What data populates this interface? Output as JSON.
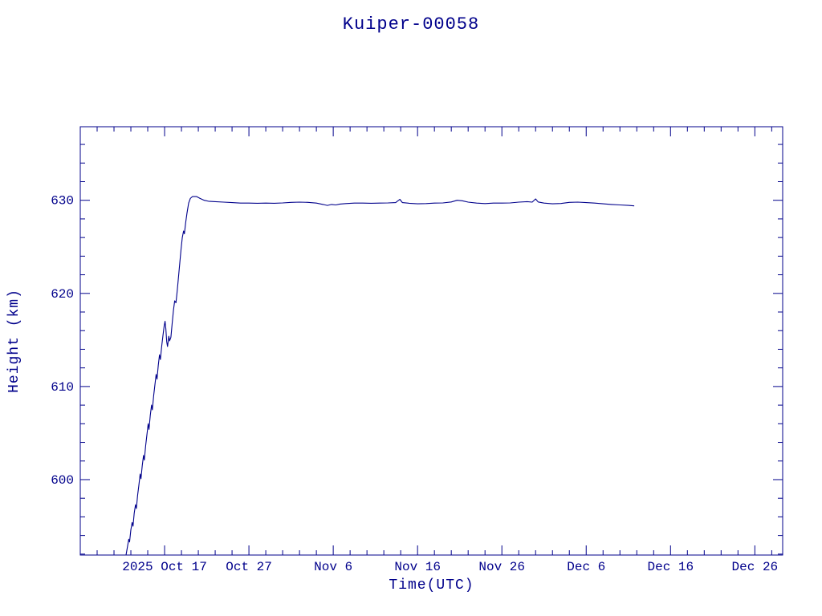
{
  "colors": {
    "ink": "#00008b",
    "background": "#ffffff"
  },
  "chart_data": {
    "type": "line",
    "title": "Kuiper-00058",
    "xlabel": "Time(UTC)",
    "ylabel": "Height (km)",
    "grid": false,
    "legend": false,
    "x_axis": {
      "unit": "days since 2025 Oct 7 (UTC)",
      "range": [
        0,
        83.3
      ],
      "minor_step": 2,
      "major_ticks": [
        {
          "pos": 10,
          "label": "2025 Oct 17"
        },
        {
          "pos": 20,
          "label": "Oct 27"
        },
        {
          "pos": 30,
          "label": "Nov 6"
        },
        {
          "pos": 40,
          "label": "Nov 16"
        },
        {
          "pos": 50,
          "label": "Nov 26"
        },
        {
          "pos": 60,
          "label": "Dec 6"
        },
        {
          "pos": 70,
          "label": "Dec 16"
        },
        {
          "pos": 80,
          "label": "Dec 26"
        }
      ]
    },
    "y_axis": {
      "unit": "km",
      "range": [
        591.9,
        637.9
      ],
      "minor_step": 2,
      "major_ticks": [
        {
          "pos": 600,
          "label": "600"
        },
        {
          "pos": 610,
          "label": "610"
        },
        {
          "pos": 620,
          "label": "620"
        },
        {
          "pos": 630,
          "label": "630"
        }
      ]
    },
    "series": [
      {
        "name": "Kuiper-00058 orbit height",
        "points": [
          [
            5.43,
            591.9
          ],
          [
            5.6,
            592.8
          ],
          [
            5.75,
            593.6
          ],
          [
            5.85,
            593.3
          ],
          [
            6.0,
            594.6
          ],
          [
            6.15,
            595.4
          ],
          [
            6.25,
            595.0
          ],
          [
            6.4,
            596.4
          ],
          [
            6.55,
            597.3
          ],
          [
            6.65,
            596.9
          ],
          [
            6.8,
            598.3
          ],
          [
            6.95,
            599.4
          ],
          [
            7.1,
            600.6
          ],
          [
            7.2,
            600.1
          ],
          [
            7.35,
            601.5
          ],
          [
            7.5,
            602.6
          ],
          [
            7.6,
            602.1
          ],
          [
            7.75,
            603.6
          ],
          [
            7.9,
            604.8
          ],
          [
            8.05,
            606.0
          ],
          [
            8.15,
            605.4
          ],
          [
            8.3,
            606.9
          ],
          [
            8.45,
            608.0
          ],
          [
            8.55,
            607.5
          ],
          [
            8.7,
            609.0
          ],
          [
            8.85,
            610.2
          ],
          [
            9.0,
            611.3
          ],
          [
            9.1,
            610.8
          ],
          [
            9.25,
            612.3
          ],
          [
            9.4,
            613.4
          ],
          [
            9.5,
            612.9
          ],
          [
            9.65,
            614.3
          ],
          [
            9.8,
            615.4
          ],
          [
            9.95,
            616.5
          ],
          [
            10.05,
            617.0
          ],
          [
            10.15,
            616.2
          ],
          [
            10.25,
            614.8
          ],
          [
            10.35,
            614.3
          ],
          [
            10.5,
            615.4
          ],
          [
            10.6,
            614.9
          ],
          [
            10.75,
            615.3
          ],
          [
            10.9,
            616.8
          ],
          [
            11.05,
            618.2
          ],
          [
            11.2,
            619.2
          ],
          [
            11.35,
            619.0
          ],
          [
            11.5,
            620.3
          ],
          [
            11.65,
            621.8
          ],
          [
            11.8,
            623.2
          ],
          [
            11.95,
            624.7
          ],
          [
            12.1,
            626.0
          ],
          [
            12.25,
            626.7
          ],
          [
            12.35,
            626.4
          ],
          [
            12.5,
            627.6
          ],
          [
            12.65,
            628.6
          ],
          [
            12.85,
            629.7
          ],
          [
            13.05,
            630.2
          ],
          [
            13.3,
            630.4
          ],
          [
            13.8,
            630.4
          ],
          [
            14.2,
            630.2
          ],
          [
            14.7,
            630.0
          ],
          [
            15.2,
            629.9
          ],
          [
            16,
            629.85
          ],
          [
            17,
            629.8
          ],
          [
            18,
            629.75
          ],
          [
            19,
            629.7
          ],
          [
            20,
            629.7
          ],
          [
            21,
            629.68
          ],
          [
            22,
            629.7
          ],
          [
            23,
            629.68
          ],
          [
            24,
            629.72
          ],
          [
            25,
            629.78
          ],
          [
            26,
            629.8
          ],
          [
            27,
            629.78
          ],
          [
            28,
            629.7
          ],
          [
            28.8,
            629.55
          ],
          [
            29.3,
            629.45
          ],
          [
            29.8,
            629.55
          ],
          [
            30.3,
            629.5
          ],
          [
            30.8,
            629.6
          ],
          [
            31.5,
            629.65
          ],
          [
            32.5,
            629.7
          ],
          [
            33.5,
            629.7
          ],
          [
            34.5,
            629.68
          ],
          [
            35.5,
            629.7
          ],
          [
            36.5,
            629.72
          ],
          [
            37.4,
            629.75
          ],
          [
            37.9,
            630.1
          ],
          [
            38.2,
            629.75
          ],
          [
            39,
            629.68
          ],
          [
            40,
            629.62
          ],
          [
            41,
            629.65
          ],
          [
            42,
            629.7
          ],
          [
            43,
            629.72
          ],
          [
            44,
            629.82
          ],
          [
            44.7,
            630.0
          ],
          [
            45.3,
            629.95
          ],
          [
            46,
            629.8
          ],
          [
            47,
            629.7
          ],
          [
            48,
            629.65
          ],
          [
            49,
            629.7
          ],
          [
            50,
            629.7
          ],
          [
            51,
            629.72
          ],
          [
            52,
            629.8
          ],
          [
            53,
            629.85
          ],
          [
            53.6,
            629.8
          ],
          [
            54.0,
            630.15
          ],
          [
            54.3,
            629.82
          ],
          [
            55,
            629.7
          ],
          [
            56,
            629.62
          ],
          [
            57,
            629.66
          ],
          [
            58,
            629.78
          ],
          [
            59,
            629.8
          ],
          [
            60,
            629.75
          ],
          [
            61,
            629.7
          ],
          [
            62,
            629.62
          ],
          [
            63,
            629.55
          ],
          [
            64,
            629.5
          ],
          [
            65,
            629.45
          ],
          [
            65.7,
            629.4
          ]
        ]
      }
    ]
  }
}
